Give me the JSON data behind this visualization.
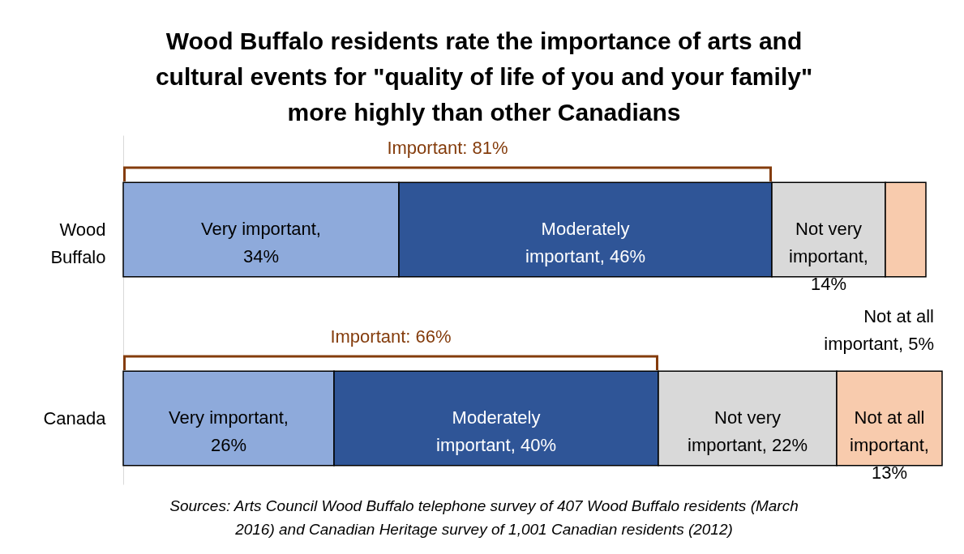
{
  "chart_data": {
    "type": "bar",
    "orientation": "horizontal",
    "stacked": true,
    "title": "Wood Buffalo residents rate the importance of arts and cultural events for \"quality of life of you and your family\" more highly than other Canadians",
    "categories": [
      "Wood Buffalo",
      "Canada"
    ],
    "series": [
      {
        "name": "Very important,",
        "color": "#8eaadb",
        "values": [
          34,
          26
        ],
        "value_labels": [
          "34%",
          "26%"
        ]
      },
      {
        "name": "Moderately important,",
        "color": "#2f5597",
        "values": [
          46,
          40
        ],
        "value_labels": [
          "46%",
          "40%"
        ]
      },
      {
        "name": "Not very important,",
        "color": "#d9d9d9",
        "values": [
          14,
          22
        ],
        "value_labels": [
          "14%",
          "22%"
        ]
      },
      {
        "name": "Not at all important,",
        "color": "#f8cbad",
        "values": [
          5,
          13
        ],
        "value_labels": [
          "5%",
          "13%"
        ]
      }
    ],
    "annotations": [
      "Important: 81%",
      "Important: 66%",
      "Sources: Arts Council Wood Buffalo telephone survey of 407 Wood Buffalo residents (March 2016) and Canadian Heritage survey of 1,001 Canadian residents (2012)"
    ]
  }
}
